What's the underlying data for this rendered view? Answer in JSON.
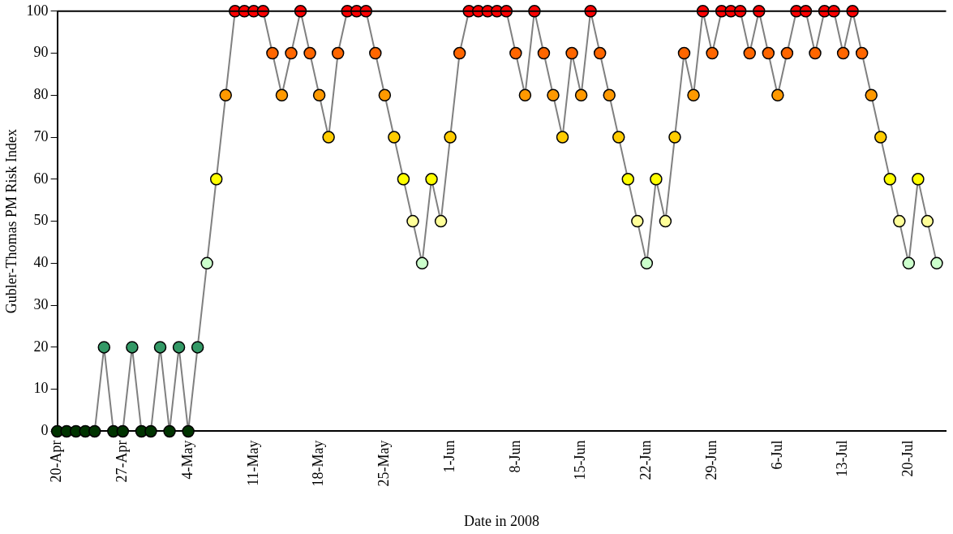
{
  "chart_data": {
    "type": "line",
    "xlabel": "Date in 2008",
    "ylabel": "Gubler-Thomas PM Risk Index",
    "color": "#808080",
    "marker": "circle",
    "x": [
      "2008-04-20",
      "2008-04-21",
      "2008-04-22",
      "2008-04-23",
      "2008-04-24",
      "2008-04-25",
      "2008-04-26",
      "2008-04-27",
      "2008-04-28",
      "2008-04-29",
      "2008-04-30",
      "2008-05-01",
      "2008-05-02",
      "2008-05-03",
      "2008-05-04",
      "2008-05-05",
      "2008-05-06",
      "2008-05-07",
      "2008-05-08",
      "2008-05-09",
      "2008-05-10",
      "2008-05-11",
      "2008-05-12",
      "2008-05-13",
      "2008-05-14",
      "2008-05-15",
      "2008-05-16",
      "2008-05-17",
      "2008-05-18",
      "2008-05-19",
      "2008-05-20",
      "2008-05-21",
      "2008-05-22",
      "2008-05-23",
      "2008-05-24",
      "2008-05-25",
      "2008-05-26",
      "2008-05-27",
      "2008-05-28",
      "2008-05-29",
      "2008-05-30",
      "2008-05-31",
      "2008-06-01",
      "2008-06-02",
      "2008-06-03",
      "2008-06-04",
      "2008-06-05",
      "2008-06-06",
      "2008-06-07",
      "2008-06-08",
      "2008-06-09",
      "2008-06-10",
      "2008-06-11",
      "2008-06-12",
      "2008-06-13",
      "2008-06-14",
      "2008-06-15",
      "2008-06-16",
      "2008-06-17",
      "2008-06-18",
      "2008-06-19",
      "2008-06-20",
      "2008-06-21",
      "2008-06-22",
      "2008-06-23",
      "2008-06-24",
      "2008-06-25",
      "2008-06-26",
      "2008-06-27",
      "2008-06-28",
      "2008-06-29",
      "2008-06-30",
      "2008-07-01",
      "2008-07-02",
      "2008-07-03",
      "2008-07-04",
      "2008-07-05",
      "2008-07-06",
      "2008-07-07",
      "2008-07-08",
      "2008-07-09",
      "2008-07-10",
      "2008-07-11",
      "2008-07-12",
      "2008-07-13",
      "2008-07-14",
      "2008-07-15",
      "2008-07-16",
      "2008-07-17",
      "2008-07-18",
      "2008-07-19",
      "2008-07-20",
      "2008-07-21",
      "2008-07-22",
      "2008-07-23"
    ],
    "values": [
      0,
      0,
      0,
      0,
      0,
      20,
      0,
      0,
      20,
      0,
      0,
      20,
      0,
      20,
      0,
      20,
      40,
      60,
      80,
      100,
      100,
      100,
      100,
      90,
      80,
      90,
      100,
      90,
      80,
      70,
      90,
      100,
      100,
      100,
      90,
      80,
      70,
      60,
      50,
      40,
      60,
      50,
      70,
      90,
      100,
      100,
      100,
      100,
      100,
      90,
      80,
      100,
      90,
      80,
      70,
      90,
      80,
      100,
      90,
      80,
      70,
      60,
      50,
      40,
      60,
      50,
      70,
      90,
      80,
      100,
      90,
      100,
      100,
      100,
      90,
      100,
      90,
      80,
      90,
      100,
      100,
      90,
      100,
      100,
      90,
      100,
      90,
      80,
      70,
      60,
      50,
      40,
      60,
      50,
      40
    ],
    "colors": [
      "#003300",
      "#003300",
      "#003300",
      "#003300",
      "#003300",
      "#339966",
      "#003300",
      "#003300",
      "#339966",
      "#003300",
      "#003300",
      "#339966",
      "#003300",
      "#339966",
      "#003300",
      "#339966",
      "#ccffcc",
      "#ffff00",
      "#ff9900",
      "#ff0000",
      "#ff0000",
      "#ff0000",
      "#ff0000",
      "#ff6600",
      "#ff9900",
      "#ff6600",
      "#ff0000",
      "#ff6600",
      "#ff9900",
      "#ffcc00",
      "#ff6600",
      "#ff0000",
      "#ff0000",
      "#ff0000",
      "#ff6600",
      "#ff9900",
      "#ffcc00",
      "#ffff00",
      "#ffff99",
      "#ccffcc",
      "#ffff00",
      "#ffff99",
      "#ffcc00",
      "#ff6600",
      "#ff0000",
      "#ff0000",
      "#ff0000",
      "#ff0000",
      "#ff0000",
      "#ff6600",
      "#ff9900",
      "#ff0000",
      "#ff6600",
      "#ff9900",
      "#ffcc00",
      "#ff6600",
      "#ff9900",
      "#ff0000",
      "#ff6600",
      "#ff9900",
      "#ffcc00",
      "#ffff00",
      "#ffff99",
      "#ccffcc",
      "#ffff00",
      "#ffff99",
      "#ffcc00",
      "#ff6600",
      "#ff9900",
      "#ff0000",
      "#ff6600",
      "#ff0000",
      "#ff0000",
      "#ff0000",
      "#ff6600",
      "#ff0000",
      "#ff6600",
      "#ff9900",
      "#ff6600",
      "#ff0000",
      "#ff0000",
      "#ff6600",
      "#ff0000",
      "#ff0000",
      "#ff6600",
      "#ff0000",
      "#ff6600",
      "#ff9900",
      "#ffcc00",
      "#ffff00",
      "#ffff99",
      "#ccffcc",
      "#ffff00",
      "#ffff99",
      "#ccffcc"
    ],
    "ylim": [
      0,
      100
    ],
    "yticks": [
      0,
      10,
      20,
      30,
      40,
      50,
      60,
      70,
      80,
      90,
      100
    ],
    "xlim": [
      "2008-04-20",
      "2008-07-24"
    ],
    "xticks": [
      {
        "value": "2008-04-20",
        "label": "20-Apr"
      },
      {
        "value": "2008-04-27",
        "label": "27-Apr"
      },
      {
        "value": "2008-05-04",
        "label": "4-May"
      },
      {
        "value": "2008-05-11",
        "label": "11-May"
      },
      {
        "value": "2008-05-18",
        "label": "18-May"
      },
      {
        "value": "2008-05-25",
        "label": "25-May"
      },
      {
        "value": "2008-06-01",
        "label": "1-Jun"
      },
      {
        "value": "2008-06-08",
        "label": "8-Jun"
      },
      {
        "value": "2008-06-15",
        "label": "15-Jun"
      },
      {
        "value": "2008-06-22",
        "label": "22-Jun"
      },
      {
        "value": "2008-06-29",
        "label": "29-Jun"
      },
      {
        "value": "2008-07-06",
        "label": "6-Jul"
      },
      {
        "value": "2008-07-13",
        "label": "13-Jul"
      },
      {
        "value": "2008-07-20",
        "label": "20-Jul"
      }
    ]
  }
}
